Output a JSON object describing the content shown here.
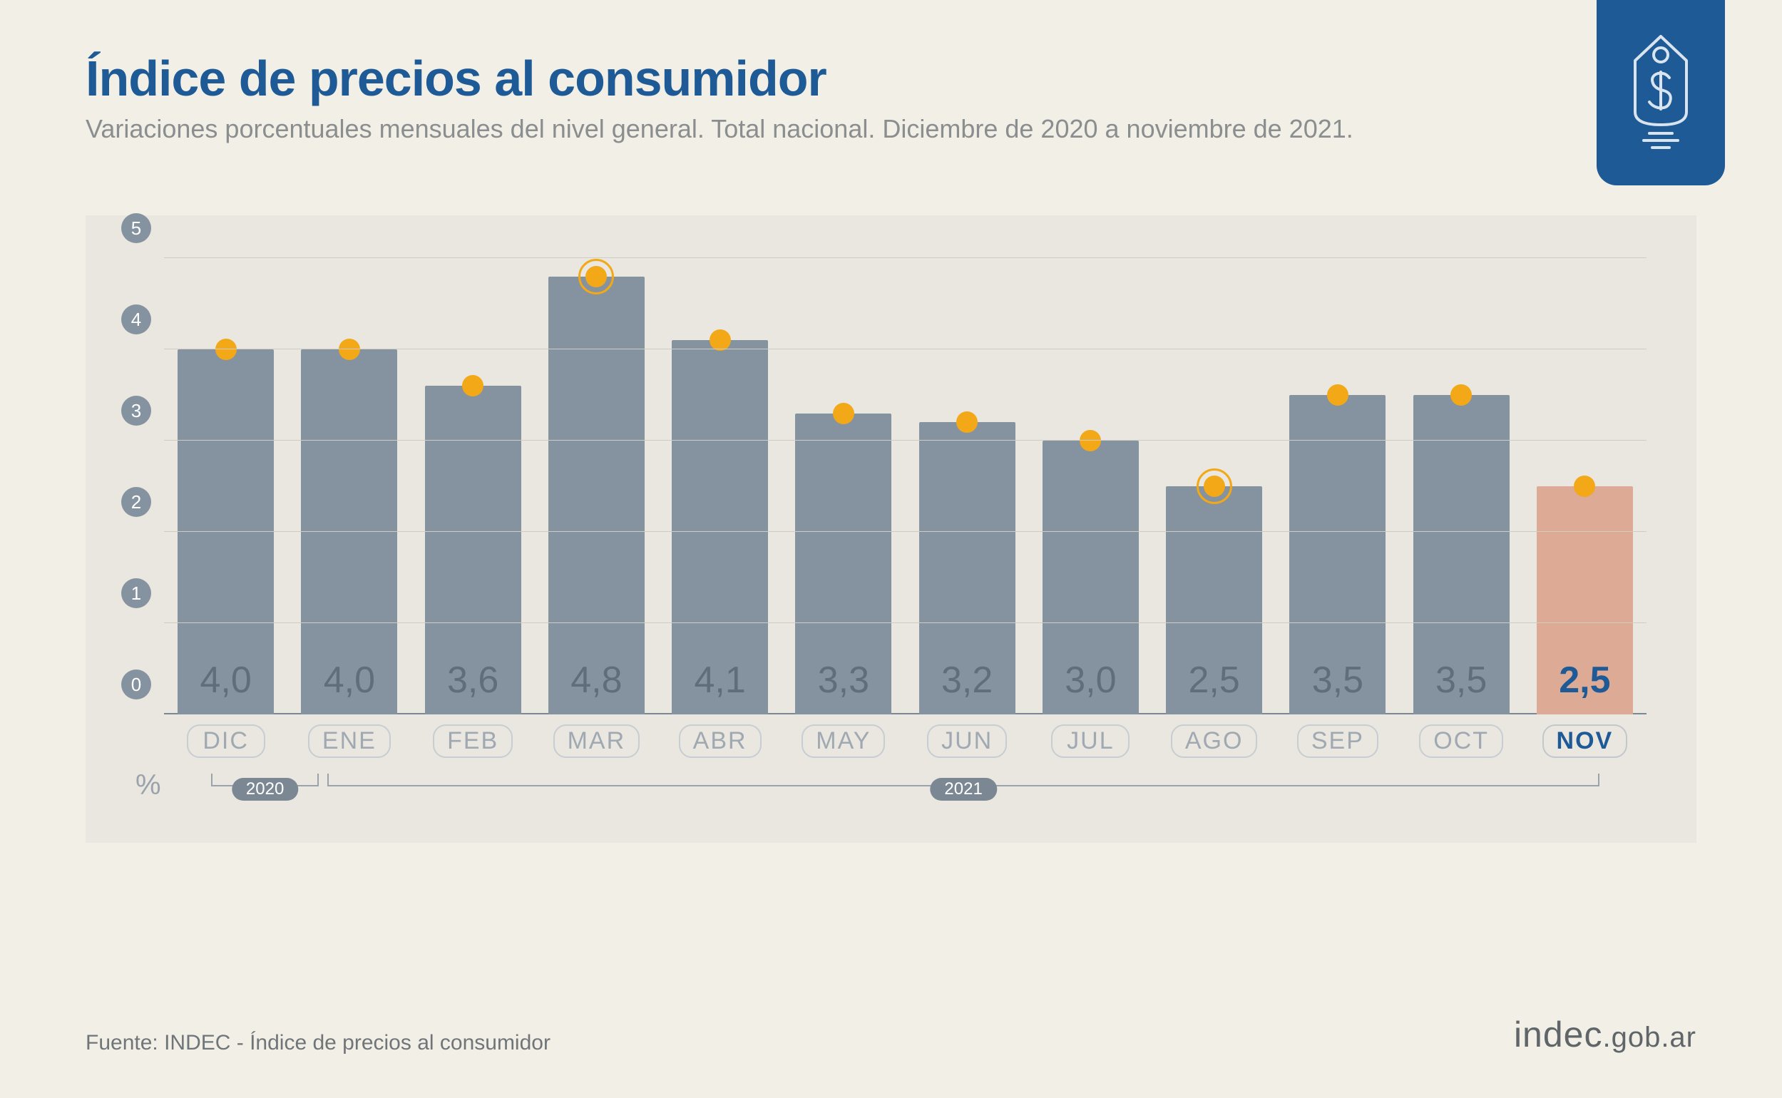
{
  "header": {
    "title": "Índice de precios al consumidor",
    "subtitle": "Variaciones porcentuales mensuales del nivel general. Total nacional. Diciembre de 2020 a noviembre de 2021."
  },
  "chart": {
    "type": "bar",
    "unit_label": "%",
    "y": {
      "min": 0,
      "max": 5,
      "step": 1,
      "ticks": [
        "0",
        "1",
        "2",
        "3",
        "4",
        "5"
      ]
    },
    "grid_color": "#cfccc3",
    "axis_color": "#7b8894",
    "background_color": "#e9e7df",
    "page_background": "#f2efe6",
    "bar_color_default": "#8592a0",
    "bar_color_highlight": "#dcaa95",
    "value_text_color_default": "#5f6e7a",
    "value_text_color_highlight": "#1e5a96",
    "marker_color": "#f2a817",
    "y_tick_pill_bg": "#8592a0",
    "y_tick_pill_fg": "#ffffff",
    "x_label_color": "#a0a9b2",
    "x_label_highlight_color": "#1e5a96",
    "value_fontsize": 52,
    "x_label_fontsize": 34,
    "bars": [
      {
        "label": "DIC",
        "value": 4.0,
        "display": "4,0",
        "highlight": false,
        "ring": false
      },
      {
        "label": "ENE",
        "value": 4.0,
        "display": "4,0",
        "highlight": false,
        "ring": false
      },
      {
        "label": "FEB",
        "value": 3.6,
        "display": "3,6",
        "highlight": false,
        "ring": false
      },
      {
        "label": "MAR",
        "value": 4.8,
        "display": "4,8",
        "highlight": false,
        "ring": true
      },
      {
        "label": "ABR",
        "value": 4.1,
        "display": "4,1",
        "highlight": false,
        "ring": false
      },
      {
        "label": "MAY",
        "value": 3.3,
        "display": "3,3",
        "highlight": false,
        "ring": false
      },
      {
        "label": "JUN",
        "value": 3.2,
        "display": "3,2",
        "highlight": false,
        "ring": false
      },
      {
        "label": "JUL",
        "value": 3.0,
        "display": "3,0",
        "highlight": false,
        "ring": false
      },
      {
        "label": "AGO",
        "value": 2.5,
        "display": "2,5",
        "highlight": false,
        "ring": true
      },
      {
        "label": "SEP",
        "value": 3.5,
        "display": "3,5",
        "highlight": false,
        "ring": false
      },
      {
        "label": "OCT",
        "value": 3.5,
        "display": "3,5",
        "highlight": false,
        "ring": false
      },
      {
        "label": "NOV",
        "value": 2.5,
        "display": "2,5",
        "highlight": true,
        "ring": false
      }
    ],
    "year_groups": [
      {
        "label": "2020",
        "from": 0,
        "to": 0
      },
      {
        "label": "2021",
        "from": 1,
        "to": 11
      }
    ]
  },
  "footer": {
    "source": "Fuente: INDEC - Índice de precios al consumidor",
    "brand_main": "indec",
    "brand_suffix": ".gob.ar"
  },
  "colors": {
    "title": "#1e5a96",
    "subtitle": "#8b8e8f",
    "badge_bg": "#1e5a96",
    "source_text": "#6f7578",
    "brand_text": "#5f6568"
  }
}
